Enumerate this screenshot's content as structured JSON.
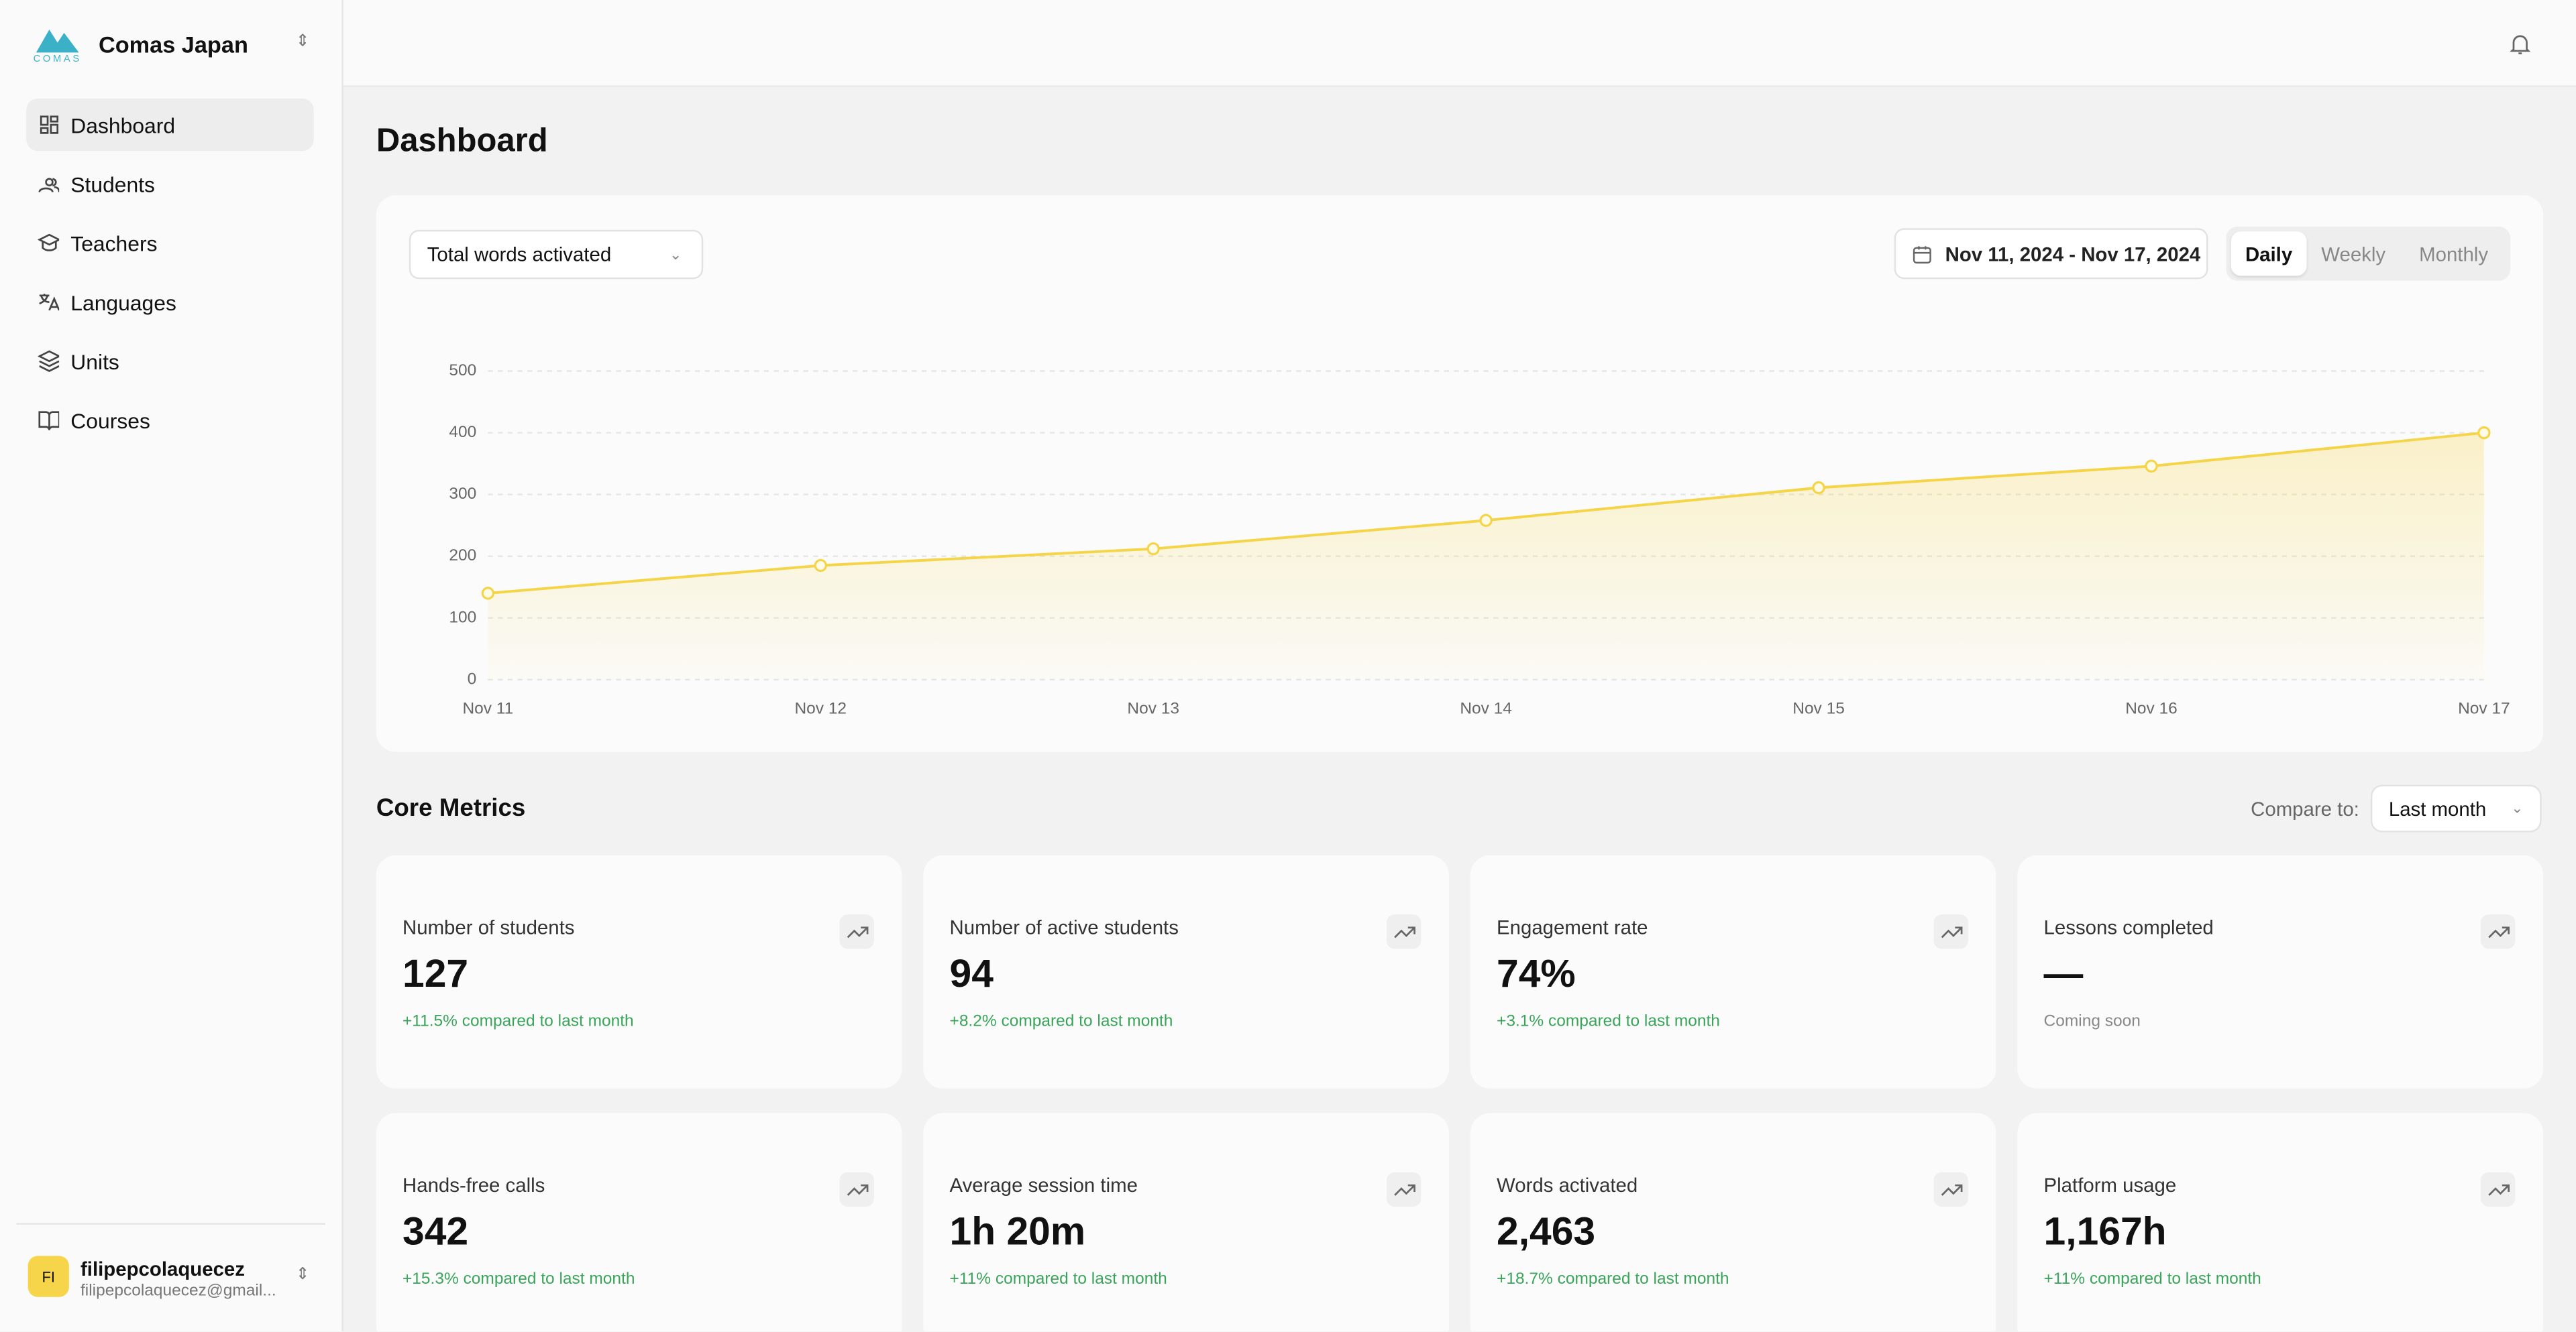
{
  "sidebar": {
    "org": "Comas Japan",
    "logo_text": "COMAS",
    "nav": [
      "Dashboard",
      "Students",
      "Teachers",
      "Languages",
      "Units",
      "Courses"
    ],
    "user": {
      "initials": "FI",
      "name": "filipepcolaquecez",
      "email": "filipepcolaquecez@gmail..."
    }
  },
  "page": {
    "title": "Dashboard"
  },
  "toolbar": {
    "metric": "Total words activated",
    "date_range": "Nov 11, 2024 - Nov 17, 2024",
    "periods": [
      "Daily",
      "Weekly",
      "Monthly"
    ]
  },
  "chart_data": {
    "type": "line",
    "categories": [
      "Nov 11",
      "Nov 12",
      "Nov 13",
      "Nov 14",
      "Nov 15",
      "Nov 16",
      "Nov 17"
    ],
    "values": [
      140,
      185,
      212,
      258,
      311,
      346,
      400
    ],
    "color": "#f5d547",
    "ylim": [
      0,
      500
    ],
    "yticks": [
      0,
      100,
      200,
      300,
      400,
      500
    ],
    "grid": true
  },
  "metrics": {
    "title": "Core Metrics",
    "compare_label": "Compare to:",
    "compare_value": "Last month",
    "cards": [
      {
        "title": "Number of students",
        "value": "127",
        "change": "+11.5% compared to last month"
      },
      {
        "title": "Number of active students",
        "value": "94",
        "change": "+8.2% compared to last month"
      },
      {
        "title": "Engagement rate",
        "value": "74%",
        "change": "+3.1% compared to last month"
      },
      {
        "title": "Lessons completed",
        "value": "—",
        "note": "Coming soon"
      },
      {
        "title": "Hands-free calls",
        "value": "342",
        "change": "+15.3% compared to last month"
      },
      {
        "title": "Average session time",
        "value": "1h 20m",
        "change": "+11% compared to last month"
      },
      {
        "title": "Words activated",
        "value": "2,463",
        "change": "+18.7% compared to last month"
      },
      {
        "title": "Platform usage",
        "value": "1,167h",
        "change": "+11% compared to last month"
      }
    ]
  }
}
